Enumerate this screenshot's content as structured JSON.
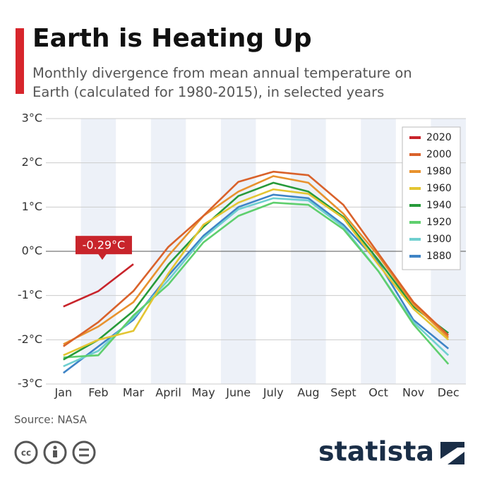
{
  "chart_data": {
    "type": "line",
    "title": "Earth is Heating Up",
    "subtitle": "Monthly divergence from mean annual temperature on Earth (calculated for 1980-2015), in selected years",
    "source": "Source: NASA",
    "logo": "statista",
    "categories": [
      "Jan",
      "Feb",
      "Mar",
      "April",
      "May",
      "June",
      "July",
      "Aug",
      "Sept",
      "Oct",
      "Nov",
      "Dec"
    ],
    "ylim": [
      -3,
      3
    ],
    "yticks": [
      {
        "value": 3,
        "label": "3°C"
      },
      {
        "value": 2,
        "label": "2°C"
      },
      {
        "value": 1,
        "label": "1°C"
      },
      {
        "value": 0,
        "label": "0°C"
      },
      {
        "value": -1,
        "label": "-1°C"
      },
      {
        "value": -2,
        "label": "-2°C"
      },
      {
        "value": -3,
        "label": "-3°C"
      }
    ],
    "grid": true,
    "legend": "top-right",
    "series": [
      {
        "name": "2020",
        "color": "#c8242b",
        "values": [
          -1.25,
          -0.9,
          -0.29,
          null,
          null,
          null,
          null,
          null,
          null,
          null,
          null,
          null
        ],
        "value_labels": [
          null,
          null,
          "-0.29°C",
          null,
          null,
          null,
          null,
          null,
          null,
          null,
          null,
          null
        ]
      },
      {
        "name": "2000",
        "color": "#d9622b",
        "values": [
          -2.15,
          -1.6,
          -0.9,
          0.1,
          0.8,
          1.57,
          1.8,
          1.72,
          1.05,
          -0.05,
          -1.15,
          -1.9
        ]
      },
      {
        "name": "1980",
        "color": "#e8922e",
        "values": [
          -2.1,
          -1.7,
          -1.15,
          -0.1,
          0.8,
          1.35,
          1.7,
          1.55,
          0.85,
          -0.1,
          -1.2,
          -1.95
        ]
      },
      {
        "name": "1960",
        "color": "#e3c532",
        "values": [
          -2.35,
          -2.0,
          -1.8,
          -0.5,
          0.6,
          1.1,
          1.4,
          1.3,
          0.75,
          -0.3,
          -1.3,
          -2.0
        ]
      },
      {
        "name": "1940",
        "color": "#279a3a",
        "values": [
          -2.45,
          -2.0,
          -1.35,
          -0.3,
          0.55,
          1.25,
          1.55,
          1.35,
          0.78,
          -0.2,
          -1.25,
          -1.85
        ]
      },
      {
        "name": "1920",
        "color": "#5fcf6e",
        "values": [
          -2.4,
          -2.35,
          -1.45,
          -0.75,
          0.2,
          0.8,
          1.1,
          1.05,
          0.5,
          -0.45,
          -1.65,
          -2.55
        ]
      },
      {
        "name": "1900",
        "color": "#6fcfcf",
        "values": [
          -2.6,
          -2.25,
          -1.5,
          -0.65,
          0.3,
          0.95,
          1.2,
          1.15,
          0.55,
          -0.45,
          -1.6,
          -2.35
        ]
      },
      {
        "name": "1880",
        "color": "#3f84c6",
        "values": [
          -2.75,
          -2.15,
          -1.55,
          -0.55,
          0.35,
          1.0,
          1.28,
          1.2,
          0.6,
          -0.25,
          -1.55,
          -2.2
        ]
      }
    ]
  }
}
